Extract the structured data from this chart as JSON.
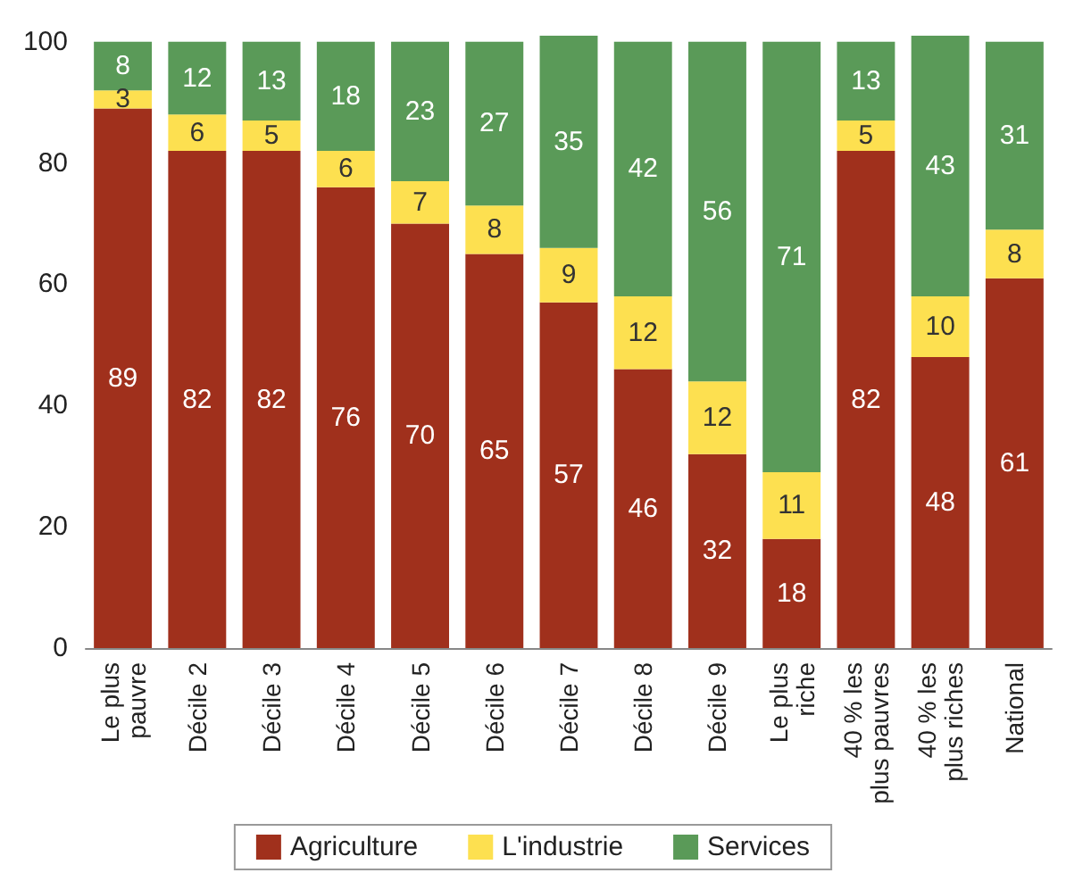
{
  "chart_data": {
    "type": "bar",
    "stacked": true,
    "data_labels": true,
    "legend": "bottom",
    "grid": false,
    "categories": [
      "Le plus\npauvre",
      "Décile 2",
      "Décile 3",
      "Décile 4",
      "Décile 5",
      "Décile 6",
      "Décile 7",
      "Décile 8",
      "Décile 9",
      "Le plus\nriche",
      "40 % les\nplus pauvres",
      "40 % les\nplus riches",
      "National"
    ],
    "ylim": [
      0,
      101
    ],
    "yticks": [
      0,
      20,
      40,
      60,
      80,
      100
    ],
    "series": [
      {
        "name": "Agriculture",
        "color": "#a0301c",
        "values": [
          89,
          82,
          82,
          76,
          70,
          65,
          57,
          46,
          32,
          18,
          82,
          48,
          61
        ]
      },
      {
        "name": "L'industrie",
        "color": "#fde050",
        "values": [
          3,
          6,
          5,
          6,
          7,
          8,
          9,
          12,
          12,
          11,
          5,
          10,
          8
        ]
      },
      {
        "name": "Services",
        "color": "#5a9a58",
        "values": [
          8,
          12,
          13,
          18,
          23,
          27,
          35,
          42,
          56,
          71,
          13,
          43,
          31
        ]
      }
    ]
  }
}
